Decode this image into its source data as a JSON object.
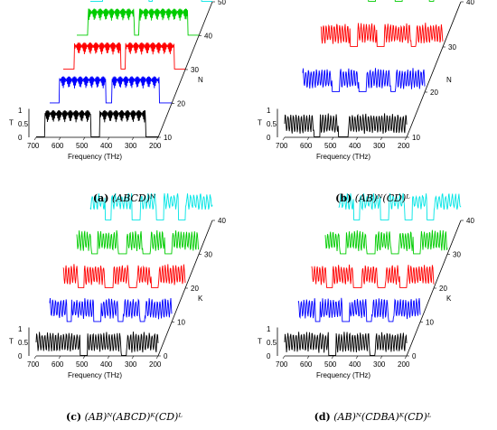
{
  "panels": [
    {
      "tag": "(a)",
      "formula": "(ABCD)^N",
      "caption_label": "(a)",
      "caption_formula": "(ABCD)ᴺ"
    },
    {
      "tag": "(b)",
      "formula": "(AB)^N(CD)^L",
      "caption_label": "(b)",
      "caption_formula": "(AB)ᴺ(CD)ᴸ"
    },
    {
      "tag": "(c)",
      "formula": "(AB)^N(ABCD)^K(CD)^L",
      "caption_label": "(c)",
      "caption_formula": "(AB)ᴺ(ABCD)ᴷ(CD)ᴸ"
    },
    {
      "tag": "(d)",
      "formula": "(AB)^N(CDBA)^K(CD)^L",
      "caption_label": "(d)",
      "caption_formula": "(AB)ᴺ(CDBA)ᴷ(CD)ᴸ"
    }
  ],
  "chart_data": [
    {
      "type": "line",
      "subtype": "waterfall-3d",
      "xlabel": "Frequency (THz)",
      "ylabel": "T",
      "zlabel": "N",
      "x_ticks": [
        700,
        600,
        500,
        400,
        300,
        200
      ],
      "y_ticks": [
        0,
        0.5,
        1
      ],
      "z_ticks": [
        10,
        20,
        30,
        40,
        50
      ],
      "xlim": [
        700,
        200
      ],
      "ylim": [
        0,
        1
      ],
      "series": [
        {
          "z": 10,
          "color": "#000000",
          "bands": [
            [
              700,
              665
            ],
            [
              475,
              440
            ],
            [
              250,
              200
            ]
          ],
          "ripple": "dense"
        },
        {
          "z": 20,
          "color": "#0000ff",
          "bands": [
            [
              700,
              660
            ],
            [
              470,
              445
            ],
            [
              250,
              200
            ]
          ],
          "ripple": "dense"
        },
        {
          "z": 30,
          "color": "#ff0000",
          "bands": [
            [
              700,
              655
            ],
            [
              465,
              445
            ],
            [
              245,
              200
            ]
          ],
          "ripple": "dense"
        },
        {
          "z": 40,
          "color": "#00cc00",
          "bands": [
            [
              700,
              655
            ],
            [
              465,
              445
            ],
            [
              245,
              200
            ]
          ],
          "ripple": "dense"
        },
        {
          "z": 50,
          "color": "#00e5e5",
          "bands": [
            [
              700,
              650
            ],
            [
              460,
              445
            ],
            [
              245,
              200
            ]
          ],
          "ripple": "dense"
        }
      ]
    },
    {
      "type": "line",
      "subtype": "waterfall-3d",
      "xlabel": "Frequency (THz)",
      "ylabel": "T",
      "zlabel": "N",
      "x_ticks": [
        700,
        600,
        500,
        400,
        300,
        200
      ],
      "y_ticks": [
        0,
        0.5,
        1
      ],
      "z_ticks": [
        10,
        20,
        30,
        40
      ],
      "xlim": [
        700,
        200
      ],
      "ylim": [
        0,
        1
      ],
      "series": [
        {
          "z": 10,
          "color": "#000000",
          "bands": [
            [
              580,
              555
            ],
            [
              480,
              440
            ]
          ],
          "ripple": "wavy"
        },
        {
          "z": 20,
          "color": "#0000ff",
          "bands": [
            [
              580,
              550
            ],
            [
              470,
              440
            ],
            [
              340,
              320
            ]
          ],
          "ripple": "wavy"
        },
        {
          "z": 30,
          "color": "#ff0000",
          "bands": [
            [
              580,
              550
            ],
            [
              470,
              440
            ],
            [
              330,
              310
            ]
          ],
          "ripple": "wavy"
        },
        {
          "z": 40,
          "color": "#00cc00",
          "bands": [
            [
              580,
              550
            ],
            [
              470,
              440
            ],
            [
              330,
              310
            ]
          ],
          "ripple": "wavy"
        },
        {
          "z": 50,
          "color": "#00e5e5",
          "bands": [
            [
              580,
              550
            ],
            [
              470,
              440
            ],
            [
              330,
              310
            ]
          ],
          "ripple": "sparse"
        }
      ]
    },
    {
      "type": "line",
      "subtype": "waterfall-3d",
      "xlabel": "Frequency (THz)",
      "ylabel": "T",
      "zlabel": "K",
      "x_ticks": [
        700,
        600,
        500,
        400,
        300,
        200
      ],
      "y_ticks": [
        0,
        0.5,
        1
      ],
      "z_ticks": [
        0,
        10,
        20,
        30,
        40
      ],
      "xlim": [
        700,
        200
      ],
      "ylim": [
        0,
        1
      ],
      "series": [
        {
          "z": 0,
          "color": "#000000",
          "bands": [
            [
              520,
              490
            ],
            [
              350,
              330
            ]
          ],
          "ripple": "wavy"
        },
        {
          "z": 10,
          "color": "#0000ff",
          "bands": [
            [
              630,
              610
            ],
            [
              520,
              490
            ],
            [
              420,
              400
            ],
            [
              330,
              310
            ]
          ],
          "ripple": "wavy"
        },
        {
          "z": 20,
          "color": "#ff0000",
          "bands": [
            [
              640,
              615
            ],
            [
              530,
              495
            ],
            [
              430,
              400
            ],
            [
              340,
              310
            ]
          ],
          "ripple": "wavy"
        },
        {
          "z": 30,
          "color": "#00cc00",
          "bands": [
            [
              640,
              615
            ],
            [
              530,
              495
            ],
            [
              430,
              400
            ],
            [
              340,
              310
            ]
          ],
          "ripple": "wavy"
        },
        {
          "z": 40,
          "color": "#00e5e5",
          "bands": [
            [
              640,
              615
            ],
            [
              530,
              495
            ],
            [
              430,
              400
            ],
            [
              340,
              310
            ]
          ],
          "ripple": "sparse"
        }
      ]
    },
    {
      "type": "line",
      "subtype": "waterfall-3d",
      "xlabel": "Frequency (THz)",
      "ylabel": "T",
      "zlabel": "K",
      "x_ticks": [
        700,
        600,
        500,
        400,
        300,
        200
      ],
      "y_ticks": [
        0,
        0.5,
        1
      ],
      "z_ticks": [
        0,
        10,
        20,
        30,
        40
      ],
      "xlim": [
        700,
        200
      ],
      "ylim": [
        0,
        1
      ],
      "series": [
        {
          "z": 0,
          "color": "#000000",
          "bands": [
            [
              520,
              490
            ],
            [
              350,
              330
            ]
          ],
          "ripple": "wavy"
        },
        {
          "z": 10,
          "color": "#0000ff",
          "bands": [
            [
              630,
              610
            ],
            [
              520,
              490
            ],
            [
              420,
              400
            ],
            [
              330,
              310
            ]
          ],
          "ripple": "wavy"
        },
        {
          "z": 20,
          "color": "#ff0000",
          "bands": [
            [
              640,
              615
            ],
            [
              530,
              495
            ],
            [
              430,
              400
            ],
            [
              340,
              310
            ]
          ],
          "ripple": "wavy"
        },
        {
          "z": 30,
          "color": "#00cc00",
          "bands": [
            [
              640,
              615
            ],
            [
              530,
              495
            ],
            [
              430,
              400
            ],
            [
              340,
              310
            ]
          ],
          "ripple": "wavy"
        },
        {
          "z": 40,
          "color": "#00e5e5",
          "bands": [
            [
              640,
              615
            ],
            [
              530,
              495
            ],
            [
              430,
              400
            ],
            [
              340,
              310
            ]
          ],
          "ripple": "sparse"
        }
      ]
    }
  ]
}
